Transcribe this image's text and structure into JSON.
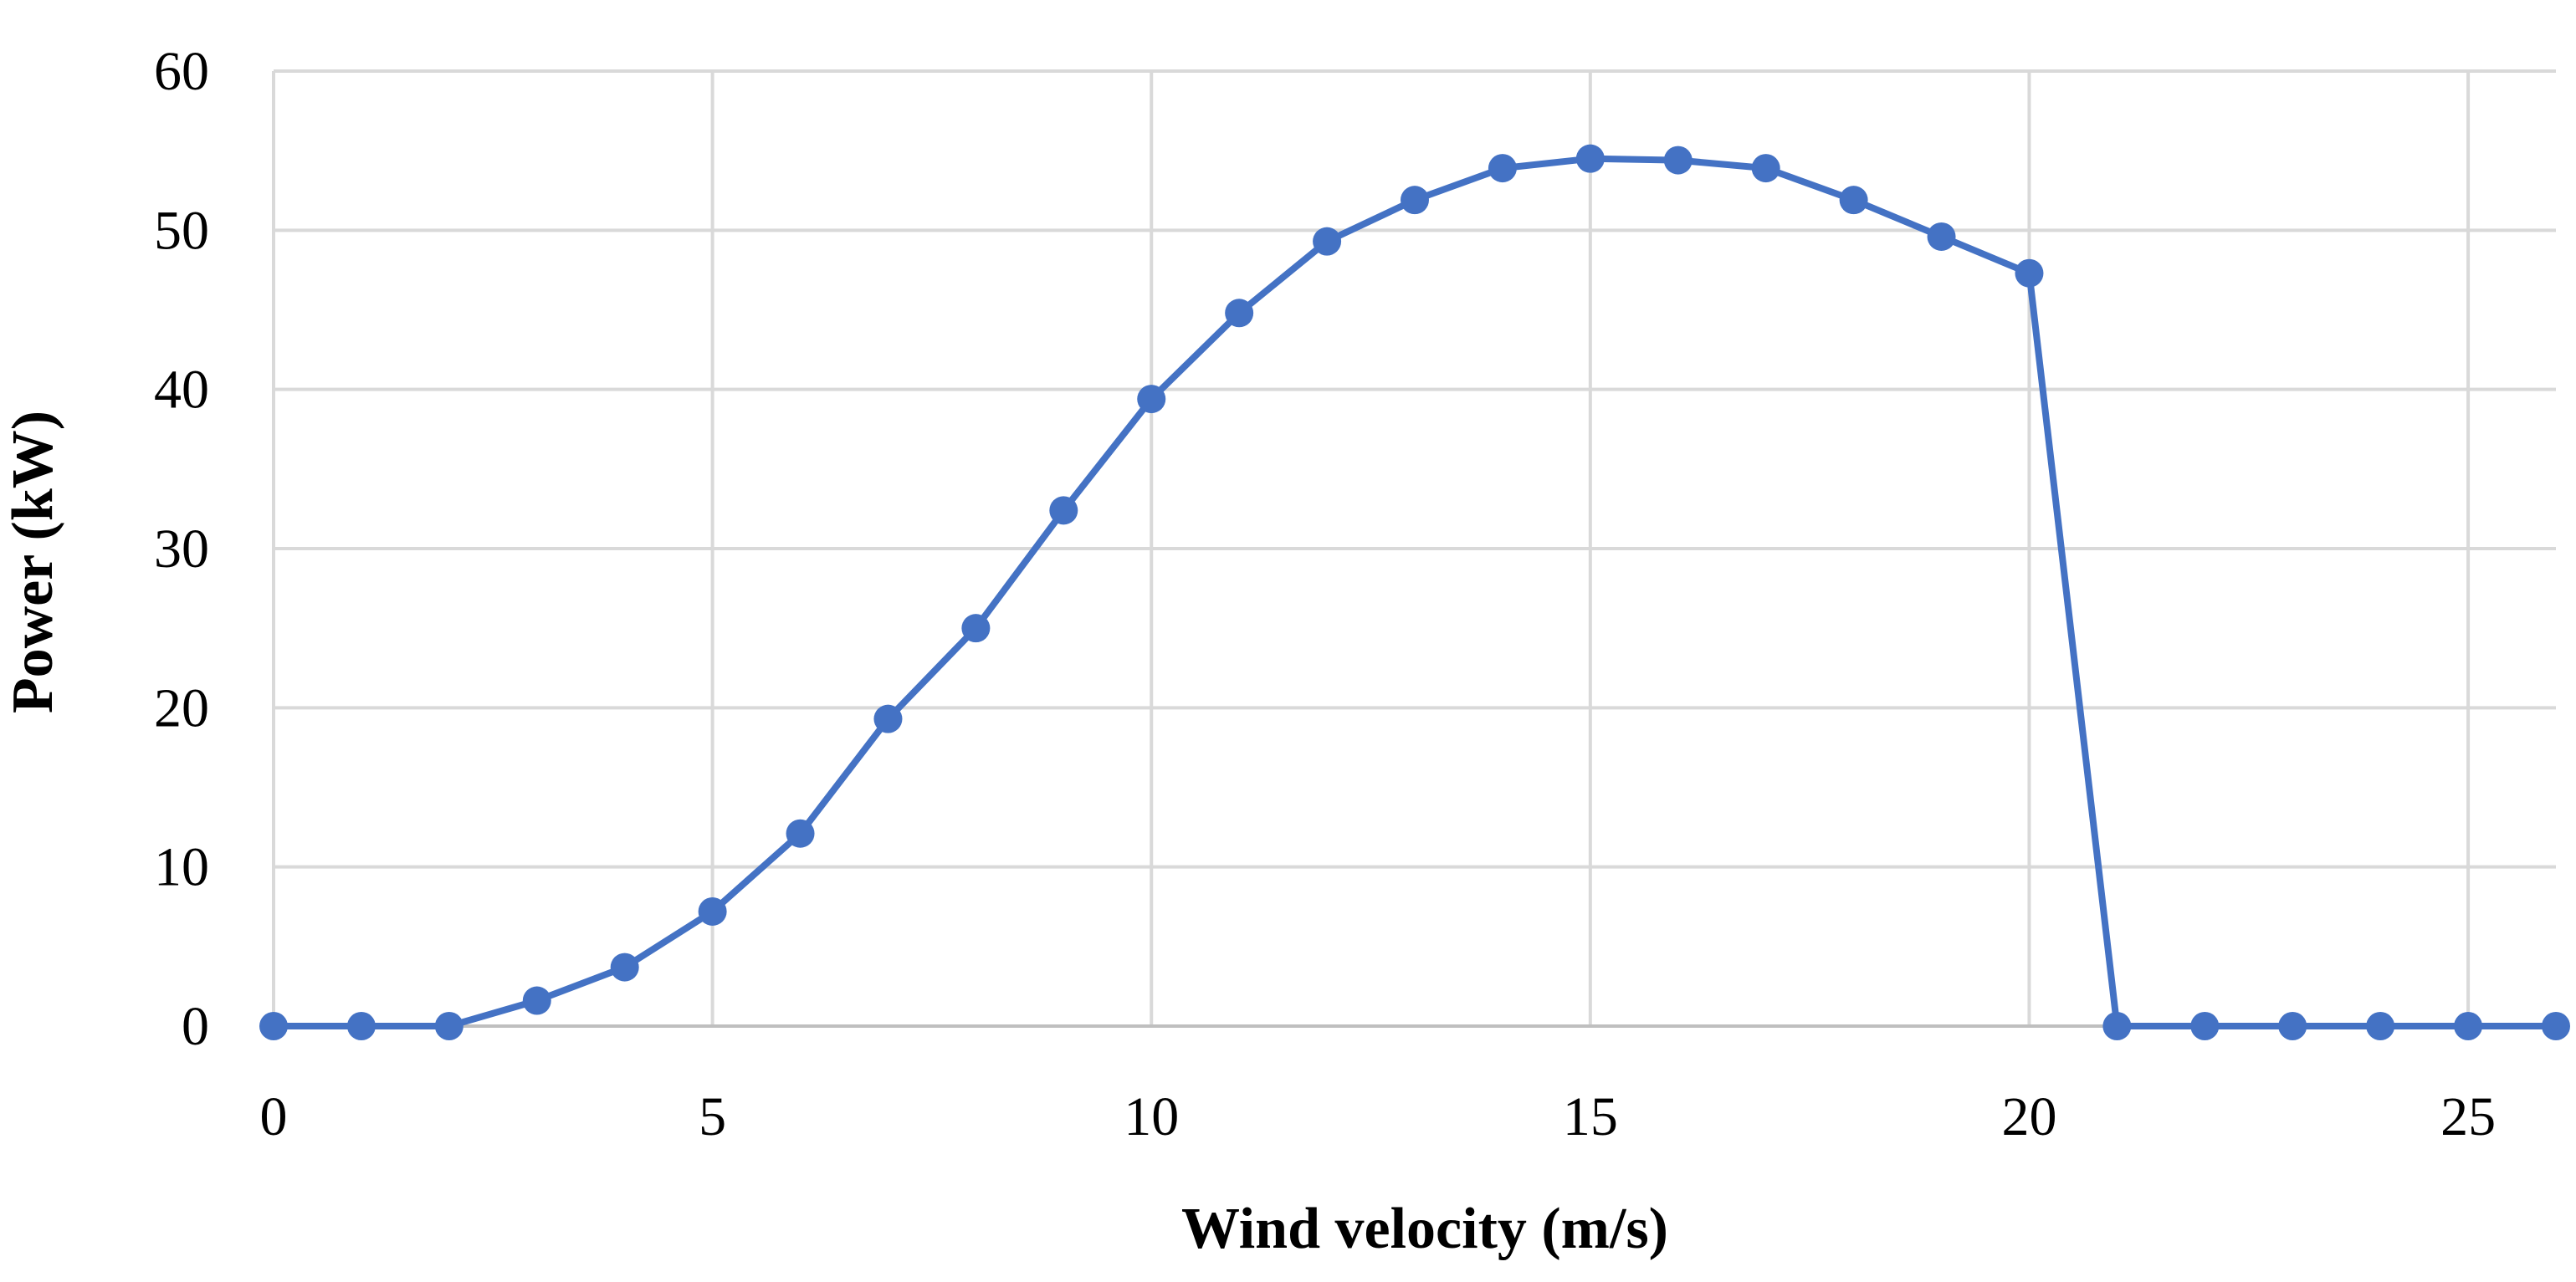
{
  "chart_data": {
    "type": "line",
    "title": "",
    "xlabel": "Wind velocity (m/s)",
    "ylabel": "Power (kW)",
    "xlim": [
      0,
      26
    ],
    "ylim": [
      0,
      60
    ],
    "x_ticks": [
      0,
      5,
      10,
      15,
      20,
      25
    ],
    "y_ticks": [
      0,
      10,
      20,
      30,
      40,
      50,
      60
    ],
    "grid": true,
    "legend": "none",
    "series": [
      {
        "name": "Power",
        "color": "#4472c4",
        "marker": "circle",
        "x": [
          0,
          1,
          2,
          3,
          4,
          5,
          6,
          7,
          8,
          9,
          10,
          11,
          12,
          13,
          14,
          15,
          16,
          17,
          18,
          19,
          20,
          21,
          22,
          23,
          24,
          25,
          26
        ],
        "values": [
          0,
          0,
          0,
          1.6,
          3.7,
          7.2,
          12.1,
          19.3,
          25.0,
          32.4,
          39.4,
          44.8,
          49.3,
          51.9,
          53.9,
          54.5,
          54.4,
          53.9,
          51.9,
          49.6,
          47.3,
          0,
          0,
          0,
          0,
          0,
          0
        ]
      }
    ]
  }
}
